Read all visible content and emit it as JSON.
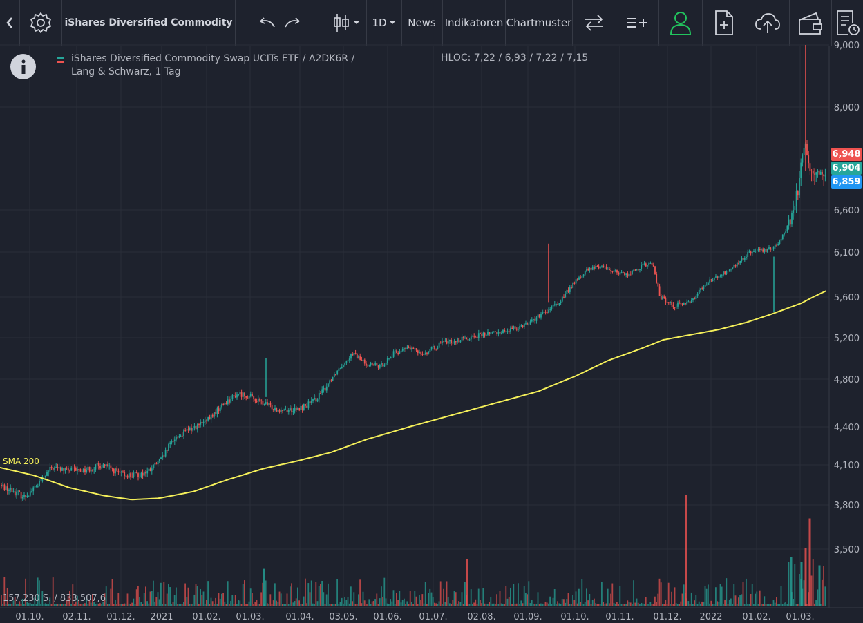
{
  "toolbar": {
    "title": "iShares Diversified Commodity",
    "interval": "1D",
    "news": "News",
    "indicators": "Indikatoren",
    "patterns": "Chartmuster"
  },
  "legend": {
    "line1": "iShares Diversified Commodity Swap UCITs ETF / A2DK6R /",
    "line2": "Lang & Schwarz, 1 Tag",
    "hloc": "HLOC: 7,22 / 6,93 / 7,22 / 7,15"
  },
  "sma_label": "SMA 200",
  "volume_info": "157.230 S.  /  833.507,6",
  "price_tags": [
    {
      "label": "6,948",
      "color": "#ef5350"
    },
    {
      "label": "6,904",
      "color": "#26a69a"
    },
    {
      "label": "6,859",
      "color": "#2196f3"
    }
  ],
  "colors": {
    "up": "#26a69a",
    "down": "#ef5350",
    "sma": "#f5f05a",
    "user_icon": "#22c55e"
  },
  "chart_data": {
    "type": "candlestick",
    "y_axis_labels": [
      "9,000",
      "8,000",
      "6,600",
      "6,100",
      "5,600",
      "5,200",
      "4,800",
      "4,400",
      "4,100",
      "3,800",
      "3,500"
    ],
    "x_axis_labels": [
      "01.10.",
      "02.11.",
      "01.12.",
      "2021",
      "01.02.",
      "01.03.",
      "01.04.",
      "03.05.",
      "01.06.",
      "01.07.",
      "02.08.",
      "01.09.",
      "01.10.",
      "01.11.",
      "01.12.",
      "2022",
      "01.02.",
      "01.03."
    ],
    "price_trend": [
      [
        0,
        3.95
      ],
      [
        20,
        3.9
      ],
      [
        35,
        3.86
      ],
      [
        55,
        3.95
      ],
      [
        75,
        4.08
      ],
      [
        95,
        4.06
      ],
      [
        120,
        4.06
      ],
      [
        150,
        4.1
      ],
      [
        175,
        4.03
      ],
      [
        195,
        4.02
      ],
      [
        215,
        4.05
      ],
      [
        235,
        4.15
      ],
      [
        250,
        4.3
      ],
      [
        275,
        4.38
      ],
      [
        300,
        4.45
      ],
      [
        325,
        4.6
      ],
      [
        345,
        4.68
      ],
      [
        360,
        4.66
      ],
      [
        380,
        4.6
      ],
      [
        400,
        4.55
      ],
      [
        430,
        4.54
      ],
      [
        455,
        4.62
      ],
      [
        470,
        4.72
      ],
      [
        490,
        4.9
      ],
      [
        510,
        5.05
      ],
      [
        530,
        4.95
      ],
      [
        550,
        4.92
      ],
      [
        570,
        5.05
      ],
      [
        590,
        5.1
      ],
      [
        615,
        5.05
      ],
      [
        640,
        5.15
      ],
      [
        665,
        5.18
      ],
      [
        690,
        5.22
      ],
      [
        715,
        5.25
      ],
      [
        740,
        5.28
      ],
      [
        765,
        5.35
      ],
      [
        790,
        5.45
      ],
      [
        810,
        5.55
      ],
      [
        830,
        5.75
      ],
      [
        850,
        5.9
      ],
      [
        870,
        5.95
      ],
      [
        890,
        5.88
      ],
      [
        910,
        5.85
      ],
      [
        930,
        5.95
      ],
      [
        945,
        5.97
      ],
      [
        955,
        5.6
      ],
      [
        975,
        5.52
      ],
      [
        1000,
        5.55
      ],
      [
        1020,
        5.75
      ],
      [
        1045,
        5.85
      ],
      [
        1065,
        5.95
      ],
      [
        1085,
        6.1
      ],
      [
        1110,
        6.12
      ],
      [
        1125,
        6.2
      ],
      [
        1140,
        6.4
      ],
      [
        1150,
        6.6
      ],
      [
        1158,
        6.9
      ],
      [
        1165,
        7.4
      ],
      [
        1172,
        6.95
      ],
      [
        1180,
        6.9
      ],
      [
        1190,
        6.9
      ],
      [
        1199,
        6.92
      ]
    ],
    "sma200": [
      [
        0,
        4.08
      ],
      [
        50,
        4.02
      ],
      [
        100,
        3.93
      ],
      [
        150,
        3.87
      ],
      [
        190,
        3.84
      ],
      [
        230,
        3.85
      ],
      [
        280,
        3.9
      ],
      [
        330,
        3.99
      ],
      [
        380,
        4.07
      ],
      [
        430,
        4.13
      ],
      [
        480,
        4.2
      ],
      [
        530,
        4.3
      ],
      [
        580,
        4.38
      ],
      [
        630,
        4.46
      ],
      [
        680,
        4.54
      ],
      [
        730,
        4.62
      ],
      [
        780,
        4.7
      ],
      [
        830,
        4.82
      ],
      [
        880,
        4.98
      ],
      [
        930,
        5.1
      ],
      [
        960,
        5.18
      ],
      [
        1000,
        5.23
      ],
      [
        1040,
        5.28
      ],
      [
        1080,
        5.35
      ],
      [
        1120,
        5.44
      ],
      [
        1160,
        5.54
      ],
      [
        1199,
        5.68
      ]
    ],
    "volume_spikes": [
      {
        "x": 993,
        "volume": 0.95,
        "dir": "down"
      },
      {
        "x": 1172,
        "volume": 0.75,
        "dir": "down"
      },
      {
        "x": 1166,
        "volume": 0.5,
        "dir": "down"
      },
      {
        "x": 1160,
        "volume": 0.38,
        "dir": "up"
      },
      {
        "x": 1145,
        "volume": 0.42,
        "dir": "up"
      },
      {
        "x": 676,
        "volume": 0.4,
        "dir": "down"
      },
      {
        "x": 382,
        "volume": 0.32,
        "dir": "up"
      },
      {
        "x": 1186,
        "volume": 0.35,
        "dir": "up"
      }
    ]
  }
}
